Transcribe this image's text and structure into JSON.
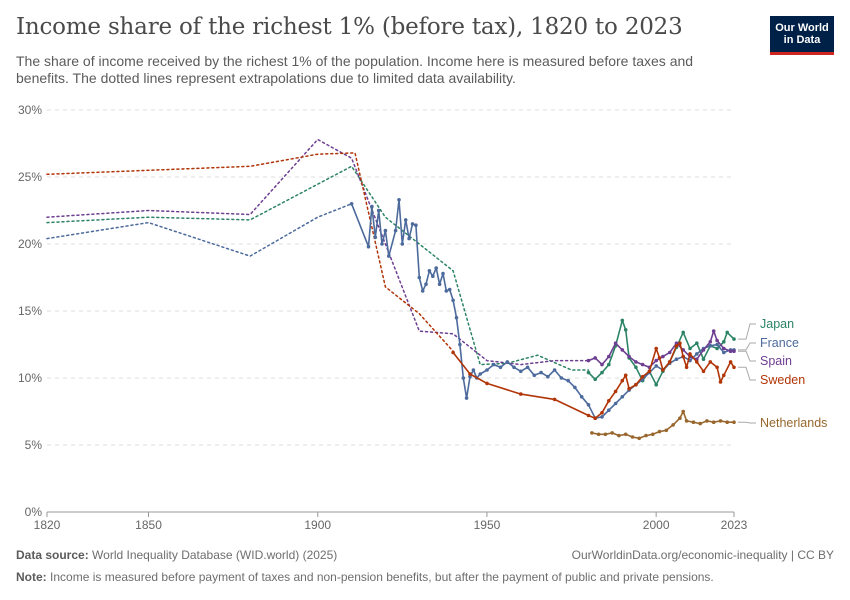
{
  "header": {
    "title": "Income share of the richest 1% (before tax), 1820 to 2023",
    "subtitle": "The share of income received by the richest 1% of the population. Income here is measured before taxes and benefits. The dotted lines represent extrapolations due to limited data availability.",
    "logo_line1": "Our World",
    "logo_line2": "in Data"
  },
  "footer": {
    "source_label": "Data source:",
    "source_text": "World Inequality Database (WID.world) (2025)",
    "url_text": "OurWorldinData.org/economic-inequality | CC BY",
    "note_label": "Note:",
    "note_text": "Income is measured before payment of taxes and non-pension benefits, but after the payment of public and private pensions."
  },
  "chart_data": {
    "type": "line",
    "title": "Income share of the richest 1% (before tax), 1820 to 2023",
    "xlabel": "",
    "ylabel": "",
    "xlim": [
      1820,
      2023
    ],
    "ylim": [
      0,
      30
    ],
    "x_ticks": [
      1820,
      1850,
      1900,
      1950,
      2000,
      2023
    ],
    "y_ticks": [
      0,
      5,
      10,
      15,
      20,
      25,
      30
    ],
    "y_tick_labels": [
      "0%",
      "5%",
      "10%",
      "15%",
      "20%",
      "25%",
      "30%"
    ],
    "grid": "horizontal dashed",
    "legend": "right, inline labels",
    "series": [
      {
        "name": "Japan",
        "color": "#2c8465",
        "extrapolated": [
          [
            1820,
            21.6
          ],
          [
            1850,
            22
          ],
          [
            1880,
            21.8
          ],
          [
            1910,
            25.8
          ],
          [
            1920,
            22
          ],
          [
            1930,
            20
          ],
          [
            1940,
            18
          ],
          [
            1948,
            11
          ],
          [
            1956,
            11.1
          ],
          [
            1965,
            11.7
          ],
          [
            1975,
            10.6
          ],
          [
            1980,
            10.6
          ]
        ],
        "observed": [
          [
            1980,
            10.4
          ],
          [
            1982,
            9.9
          ],
          [
            1984,
            10.4
          ],
          [
            1986,
            11
          ],
          [
            1988,
            12.4
          ],
          [
            1990,
            14.3
          ],
          [
            1991,
            13.6
          ],
          [
            1992,
            11.5
          ],
          [
            1994,
            10.8
          ],
          [
            1996,
            9.8
          ],
          [
            1998,
            10.5
          ],
          [
            2000,
            9.5
          ],
          [
            2002,
            10.5
          ],
          [
            2004,
            11.2
          ],
          [
            2006,
            12.3
          ],
          [
            2008,
            13.4
          ],
          [
            2010,
            12.2
          ],
          [
            2012,
            12.6
          ],
          [
            2014,
            11.4
          ],
          [
            2016,
            12.4
          ],
          [
            2018,
            12.2
          ],
          [
            2020,
            12.7
          ],
          [
            2021,
            13.4
          ],
          [
            2023,
            12.9
          ]
        ]
      },
      {
        "name": "France",
        "color": "#4c6a9c",
        "extrapolated": [
          [
            1820,
            20.4
          ],
          [
            1850,
            21.6
          ],
          [
            1880,
            19.1
          ],
          [
            1900,
            22
          ],
          [
            1910,
            23
          ]
        ],
        "observed": [
          [
            1910,
            23
          ],
          [
            1915,
            19.8
          ],
          [
            1916,
            22.8
          ],
          [
            1917,
            20.5
          ],
          [
            1918,
            22.5
          ],
          [
            1919,
            20
          ],
          [
            1920,
            21
          ],
          [
            1921,
            19.1
          ],
          [
            1923,
            21
          ],
          [
            1924,
            23.3
          ],
          [
            1925,
            20
          ],
          [
            1926,
            21.8
          ],
          [
            1927,
            20.4
          ],
          [
            1928,
            21.5
          ],
          [
            1929,
            21.4
          ],
          [
            1930,
            17.5
          ],
          [
            1931,
            16.5
          ],
          [
            1932,
            17
          ],
          [
            1933,
            18
          ],
          [
            1934,
            17.6
          ],
          [
            1935,
            18.2
          ],
          [
            1936,
            17
          ],
          [
            1937,
            17.8
          ],
          [
            1938,
            16.5
          ],
          [
            1939,
            16.6
          ],
          [
            1940,
            15.8
          ],
          [
            1941,
            14.5
          ],
          [
            1942,
            12.5
          ],
          [
            1943,
            10
          ],
          [
            1944,
            8.5
          ],
          [
            1945,
            10.1
          ],
          [
            1946,
            10.6
          ],
          [
            1947,
            10
          ],
          [
            1948,
            10.3
          ],
          [
            1950,
            10.6
          ],
          [
            1952,
            11
          ],
          [
            1954,
            10.8
          ],
          [
            1956,
            11.2
          ],
          [
            1958,
            10.8
          ],
          [
            1960,
            10.5
          ],
          [
            1962,
            10.8
          ],
          [
            1964,
            10.2
          ],
          [
            1966,
            10.4
          ],
          [
            1968,
            10.1
          ],
          [
            1970,
            10.6
          ],
          [
            1972,
            10
          ],
          [
            1974,
            9.8
          ],
          [
            1976,
            9.3
          ],
          [
            1978,
            8.6
          ],
          [
            1980,
            8
          ],
          [
            1982,
            7
          ],
          [
            1984,
            7.1
          ],
          [
            1986,
            7.6
          ],
          [
            1988,
            8.1
          ],
          [
            1990,
            8.6
          ],
          [
            1992,
            9.1
          ],
          [
            1994,
            9.5
          ],
          [
            1996,
            9.9
          ],
          [
            1998,
            10.4
          ],
          [
            2000,
            10.9
          ],
          [
            2002,
            10.6
          ],
          [
            2004,
            11.1
          ],
          [
            2006,
            11.4
          ],
          [
            2008,
            11.6
          ],
          [
            2010,
            11.3
          ],
          [
            2012,
            11.8
          ],
          [
            2014,
            12.2
          ],
          [
            2016,
            12.4
          ],
          [
            2018,
            12.5
          ],
          [
            2020,
            11.9
          ],
          [
            2022,
            12.1
          ],
          [
            2023,
            12.1
          ]
        ]
      },
      {
        "name": "Spain",
        "color": "#6d3e91",
        "extrapolated": [
          [
            1820,
            22
          ],
          [
            1850,
            22.5
          ],
          [
            1880,
            22.2
          ],
          [
            1900,
            27.8
          ],
          [
            1910,
            26.4
          ],
          [
            1920,
            20
          ],
          [
            1930,
            13.5
          ],
          [
            1940,
            13.3
          ],
          [
            1950,
            11.3
          ],
          [
            1960,
            11
          ],
          [
            1970,
            11.3
          ],
          [
            1980,
            11.3
          ]
        ],
        "observed": [
          [
            1980,
            11.3
          ],
          [
            1982,
            11.5
          ],
          [
            1984,
            11
          ],
          [
            1986,
            11.6
          ],
          [
            1988,
            12.6
          ],
          [
            1990,
            12.1
          ],
          [
            1992,
            11.6
          ],
          [
            1994,
            11.2
          ],
          [
            1996,
            11
          ],
          [
            1998,
            10.8
          ],
          [
            2000,
            11.3
          ],
          [
            2002,
            11.6
          ],
          [
            2004,
            11.9
          ],
          [
            2006,
            12.6
          ],
          [
            2008,
            12.1
          ],
          [
            2010,
            11.6
          ],
          [
            2012,
            11.4
          ],
          [
            2014,
            12.1
          ],
          [
            2016,
            12.7
          ],
          [
            2017,
            13.5
          ],
          [
            2018,
            12.8
          ],
          [
            2020,
            12.2
          ],
          [
            2022,
            12
          ],
          [
            2023,
            12
          ]
        ]
      },
      {
        "name": "Sweden",
        "color": "#b13507",
        "extrapolated": [
          [
            1820,
            25.2
          ],
          [
            1850,
            25.5
          ],
          [
            1880,
            25.8
          ],
          [
            1900,
            26.7
          ],
          [
            1911,
            26.8
          ],
          [
            1920,
            16.8
          ],
          [
            1930,
            14.8
          ],
          [
            1940,
            12
          ]
        ],
        "observed": [
          [
            1940,
            11.9
          ],
          [
            1945,
            10.3
          ],
          [
            1950,
            9.6
          ],
          [
            1960,
            8.8
          ],
          [
            1970,
            8.4
          ],
          [
            1980,
            7.2
          ],
          [
            1982,
            7
          ],
          [
            1984,
            7.4
          ],
          [
            1986,
            8.3
          ],
          [
            1988,
            9
          ],
          [
            1990,
            9.8
          ],
          [
            1991,
            10.2
          ],
          [
            1992,
            9.2
          ],
          [
            1994,
            9.5
          ],
          [
            1996,
            10.1
          ],
          [
            1998,
            10.5
          ],
          [
            2000,
            12.2
          ],
          [
            2001,
            11.5
          ],
          [
            2002,
            10.6
          ],
          [
            2004,
            11.2
          ],
          [
            2006,
            12.4
          ],
          [
            2007,
            12.6
          ],
          [
            2008,
            11.6
          ],
          [
            2009,
            10.8
          ],
          [
            2010,
            11.8
          ],
          [
            2012,
            11.2
          ],
          [
            2014,
            10.5
          ],
          [
            2016,
            11.2
          ],
          [
            2018,
            10.8
          ],
          [
            2019,
            9.7
          ],
          [
            2020,
            10.2
          ],
          [
            2022,
            11.2
          ],
          [
            2023,
            10.8
          ]
        ]
      },
      {
        "name": "Netherlands",
        "color": "#98672e",
        "extrapolated": [],
        "observed": [
          [
            1981,
            5.9
          ],
          [
            1983,
            5.8
          ],
          [
            1985,
            5.8
          ],
          [
            1987,
            5.9
          ],
          [
            1989,
            5.7
          ],
          [
            1991,
            5.8
          ],
          [
            1993,
            5.6
          ],
          [
            1995,
            5.5
          ],
          [
            1997,
            5.7
          ],
          [
            1999,
            5.8
          ],
          [
            2001,
            6
          ],
          [
            2003,
            6.1
          ],
          [
            2005,
            6.5
          ],
          [
            2007,
            7
          ],
          [
            2008,
            7.5
          ],
          [
            2009,
            6.8
          ],
          [
            2011,
            6.7
          ],
          [
            2013,
            6.6
          ],
          [
            2015,
            6.8
          ],
          [
            2017,
            6.7
          ],
          [
            2019,
            6.8
          ],
          [
            2021,
            6.7
          ],
          [
            2023,
            6.7
          ]
        ]
      }
    ]
  }
}
